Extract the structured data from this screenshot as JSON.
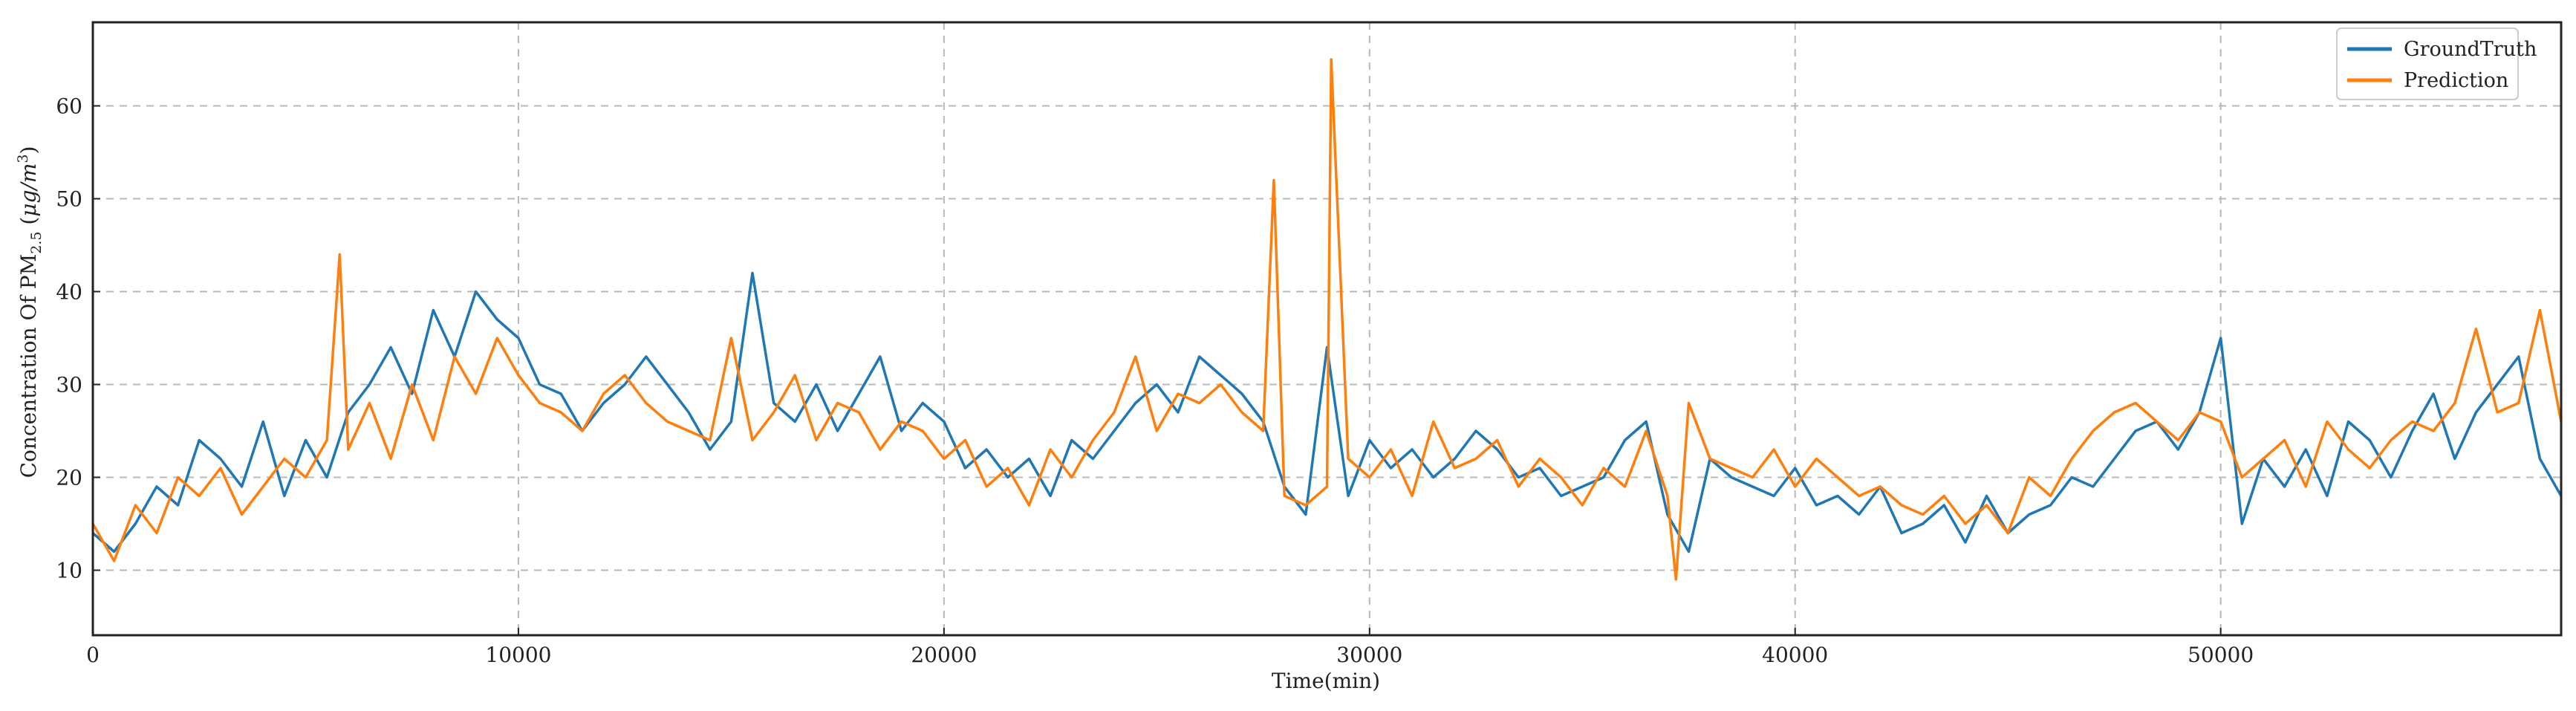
{
  "chart_data": {
    "type": "line",
    "xlabel": "Time(min)",
    "ylabel_parts": {
      "prefix": "Concentration Of PM",
      "subscript": "2.5",
      "unit_open": " (",
      "unit_main": "μg/m",
      "unit_sup": "3",
      "unit_close": ")"
    },
    "xlim": [
      0,
      58000
    ],
    "ylim": [
      3,
      69
    ],
    "xticks": [
      0,
      10000,
      20000,
      30000,
      40000,
      50000
    ],
    "yticks": [
      10,
      20,
      30,
      40,
      50,
      60
    ],
    "grid": true,
    "legend_position": "top-right",
    "series": [
      {
        "name": "GroundTruth",
        "color": "#1f77b4",
        "x": [
          0,
          500,
          1000,
          1500,
          2000,
          2500,
          3000,
          3500,
          4000,
          4500,
          5000,
          5500,
          6000,
          6500,
          7000,
          7500,
          8000,
          8500,
          9000,
          9500,
          10000,
          10500,
          11000,
          11500,
          12000,
          12500,
          13000,
          13500,
          14000,
          14500,
          15000,
          15500,
          16000,
          16500,
          17000,
          17500,
          18000,
          18500,
          19000,
          19500,
          20000,
          20500,
          21000,
          21500,
          22000,
          22500,
          23000,
          23500,
          24000,
          24500,
          25000,
          25500,
          26000,
          26500,
          27000,
          27500,
          28000,
          28500,
          29000,
          29500,
          30000,
          30500,
          31000,
          31500,
          32000,
          32500,
          33000,
          33500,
          34000,
          34500,
          35000,
          35500,
          36000,
          36500,
          37000,
          37500,
          38000,
          38500,
          39000,
          39500,
          40000,
          40500,
          41000,
          41500,
          42000,
          42500,
          43000,
          43500,
          44000,
          44500,
          45000,
          45500,
          46000,
          46500,
          47000,
          47500,
          48000,
          48500,
          49000,
          49500,
          50000,
          50500,
          51000,
          51500,
          52000,
          52500,
          53000,
          53500,
          54000,
          54500,
          55000,
          55500,
          56000,
          56500,
          57000,
          57500,
          58000
        ],
        "y": [
          14,
          12,
          15,
          19,
          17,
          24,
          22,
          19,
          26,
          18,
          24,
          20,
          27,
          30,
          34,
          29,
          38,
          33,
          40,
          37,
          35,
          30,
          29,
          25,
          28,
          30,
          33,
          30,
          27,
          23,
          26,
          42,
          28,
          26,
          30,
          25,
          29,
          33,
          25,
          28,
          26,
          21,
          23,
          20,
          22,
          18,
          24,
          22,
          25,
          28,
          30,
          27,
          33,
          31,
          29,
          26,
          19,
          16,
          34,
          18,
          24,
          21,
          23,
          20,
          22,
          25,
          23,
          20,
          21,
          18,
          19,
          20,
          24,
          26,
          16,
          12,
          22,
          20,
          19,
          18,
          21,
          17,
          18,
          16,
          19,
          14,
          15,
          17,
          13,
          18,
          14,
          16,
          17,
          20,
          19,
          22,
          25,
          26,
          23,
          27,
          35,
          15,
          22,
          19,
          23,
          18,
          26,
          24,
          20,
          25,
          29,
          22,
          27,
          30,
          33,
          22,
          18
        ]
      },
      {
        "name": "Prediction",
        "color": "#ff7f0e",
        "x": [
          0,
          500,
          1000,
          1500,
          2000,
          2500,
          3000,
          3500,
          4000,
          4500,
          5000,
          5500,
          5800,
          6000,
          6500,
          7000,
          7500,
          8000,
          8500,
          9000,
          9500,
          10000,
          10500,
          11000,
          11500,
          12000,
          12500,
          13000,
          13500,
          14000,
          14500,
          15000,
          15500,
          16000,
          16500,
          17000,
          17500,
          18000,
          18500,
          19000,
          19500,
          20000,
          20500,
          21000,
          21500,
          22000,
          22500,
          23000,
          23500,
          24000,
          24500,
          25000,
          25500,
          26000,
          26500,
          27000,
          27500,
          27750,
          28000,
          28500,
          29000,
          29100,
          29500,
          30000,
          30500,
          31000,
          31500,
          32000,
          32500,
          33000,
          33500,
          34000,
          34500,
          35000,
          35500,
          36000,
          36500,
          37000,
          37200,
          37500,
          38000,
          38500,
          39000,
          39500,
          40000,
          40500,
          41000,
          41500,
          42000,
          42500,
          43000,
          43500,
          44000,
          44500,
          45000,
          45500,
          46000,
          46500,
          47000,
          47500,
          48000,
          48500,
          49000,
          49500,
          50000,
          50500,
          51000,
          51500,
          52000,
          52500,
          53000,
          53500,
          54000,
          54500,
          55000,
          55500,
          56000,
          56500,
          57000,
          57500,
          58000
        ],
        "y": [
          15,
          11,
          17,
          14,
          20,
          18,
          21,
          16,
          19,
          22,
          20,
          24,
          44,
          23,
          28,
          22,
          30,
          24,
          33,
          29,
          35,
          31,
          28,
          27,
          25,
          29,
          31,
          28,
          26,
          25,
          24,
          35,
          24,
          27,
          31,
          24,
          28,
          27,
          23,
          26,
          25,
          22,
          24,
          19,
          21,
          17,
          23,
          20,
          24,
          27,
          33,
          25,
          29,
          28,
          30,
          27,
          25,
          52,
          18,
          17,
          19,
          65,
          22,
          20,
          23,
          18,
          26,
          21,
          22,
          24,
          19,
          22,
          20,
          17,
          21,
          19,
          25,
          18,
          9,
          28,
          22,
          21,
          20,
          23,
          19,
          22,
          20,
          18,
          19,
          17,
          16,
          18,
          15,
          17,
          14,
          20,
          18,
          22,
          25,
          27,
          28,
          26,
          24,
          27,
          26,
          20,
          22,
          24,
          19,
          26,
          23,
          21,
          24,
          26,
          25,
          28,
          36,
          27,
          28,
          38,
          26
        ]
      }
    ]
  }
}
